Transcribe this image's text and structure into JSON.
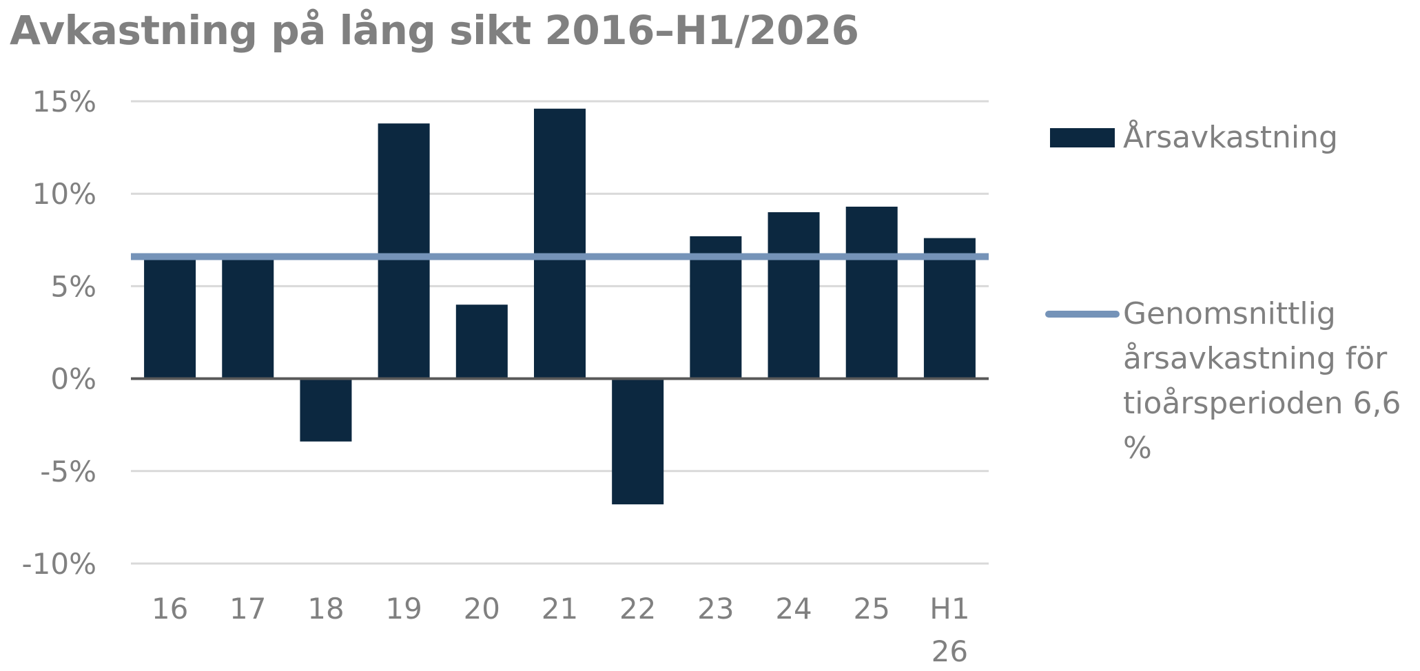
{
  "chart_data": {
    "type": "bar",
    "title": "Avkastning på lång sikt 2016–H1/2026",
    "categories": [
      "16",
      "17",
      "18",
      "19",
      "20",
      "21",
      "22",
      "23",
      "24",
      "25",
      "H1\n26"
    ],
    "series": [
      {
        "name": "Årsavkastning",
        "type": "bar",
        "color": "#0c2840",
        "values": [
          6.5,
          6.5,
          -3.4,
          13.8,
          4.0,
          14.6,
          -6.8,
          7.7,
          9.0,
          9.3,
          7.6
        ]
      },
      {
        "name": "Genomsnittlig årsavkastning för tioårsperioden 6,6 %",
        "type": "line",
        "color": "#7593b8",
        "value": 6.6
      }
    ],
    "y_ticks": [
      15,
      10,
      5,
      0,
      -5,
      -10
    ],
    "y_tick_labels": [
      "15%",
      "10%",
      "5%",
      "0%",
      "-5%",
      "-10%"
    ],
    "ylim": [
      -10,
      15
    ],
    "grid": true,
    "legend_position": "right",
    "xlabel": "",
    "ylabel": ""
  }
}
